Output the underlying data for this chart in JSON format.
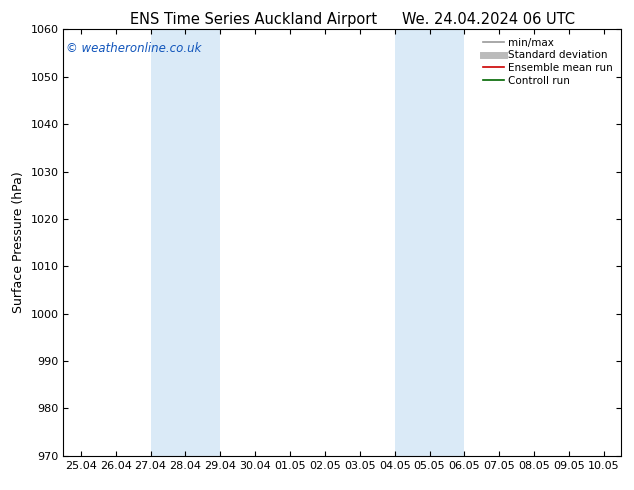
{
  "title_left": "ENS Time Series Auckland Airport",
  "title_right": "We. 24.04.2024 06 UTC",
  "ylabel": "Surface Pressure (hPa)",
  "ylim": [
    970,
    1060
  ],
  "yticks": [
    970,
    980,
    990,
    1000,
    1010,
    1020,
    1030,
    1040,
    1050,
    1060
  ],
  "xtick_labels": [
    "25.04",
    "26.04",
    "27.04",
    "28.04",
    "29.04",
    "30.04",
    "01.05",
    "02.05",
    "03.05",
    "04.05",
    "05.05",
    "06.05",
    "07.05",
    "08.05",
    "09.05",
    "10.05"
  ],
  "xtick_positions": [
    0,
    1,
    2,
    3,
    4,
    5,
    6,
    7,
    8,
    9,
    10,
    11,
    12,
    13,
    14,
    15
  ],
  "shade_bands": [
    {
      "xmin": 2,
      "xmax": 4,
      "color": "#daeaf7"
    },
    {
      "xmin": 9,
      "xmax": 11,
      "color": "#daeaf7"
    }
  ],
  "watermark": "© weatheronline.co.uk",
  "watermark_color": "#1155bb",
  "legend_items": [
    {
      "label": "min/max",
      "color": "#999999",
      "lw": 1.2
    },
    {
      "label": "Standard deviation",
      "color": "#bbbbbb",
      "lw": 5
    },
    {
      "label": "Ensemble mean run",
      "color": "#cc0000",
      "lw": 1.2
    },
    {
      "label": "Controll run",
      "color": "#006600",
      "lw": 1.2
    }
  ],
  "bg_color": "#ffffff",
  "title_fontsize": 10.5,
  "ylabel_fontsize": 9,
  "tick_fontsize": 8,
  "legend_fontsize": 7.5,
  "watermark_fontsize": 8.5
}
